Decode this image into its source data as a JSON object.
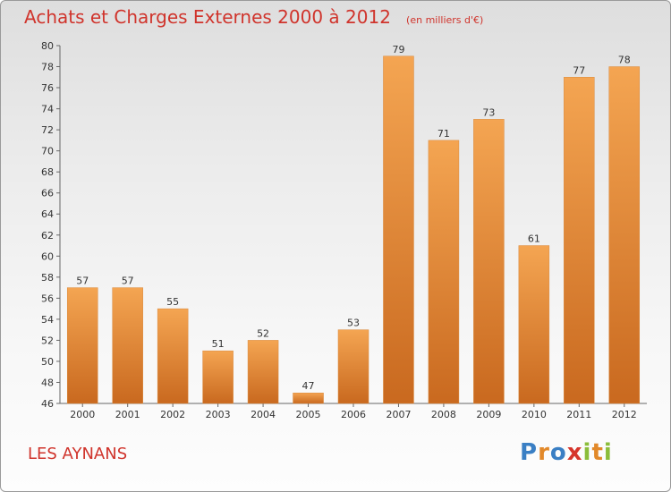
{
  "header": {
    "title": "Achats et Charges Externes 2000 à 2012",
    "subtitle": "(en milliers d'€)"
  },
  "footer": {
    "place": "LES AYNANS",
    "brand_letters": [
      "P",
      "r",
      "o",
      "x",
      "i",
      "t",
      "i"
    ],
    "brand_colors": [
      "#3a7fc4",
      "#e2892a",
      "#3a7fc4",
      "#d6352c",
      "#8bbd3a",
      "#e2892a",
      "#8bbd3a"
    ]
  },
  "colors": {
    "bar_light": "#f4a552",
    "bar_dark": "#c9691f",
    "title": "#d0342c"
  },
  "chart_data": {
    "type": "bar",
    "categories": [
      "2000",
      "2001",
      "2002",
      "2003",
      "2004",
      "2005",
      "2006",
      "2007",
      "2008",
      "2009",
      "2010",
      "2011",
      "2012"
    ],
    "values": [
      57,
      57,
      55,
      51,
      52,
      47,
      53,
      79,
      71,
      73,
      61,
      77,
      78
    ],
    "title": "Achats et Charges Externes 2000 à 2012",
    "xlabel": "",
    "ylabel": "",
    "ylim": [
      46,
      80
    ],
    "yticks": [
      46,
      48,
      50,
      52,
      54,
      56,
      58,
      60,
      62,
      64,
      66,
      68,
      70,
      72,
      74,
      76,
      78,
      80
    ],
    "grid": false,
    "data_labels": true
  }
}
